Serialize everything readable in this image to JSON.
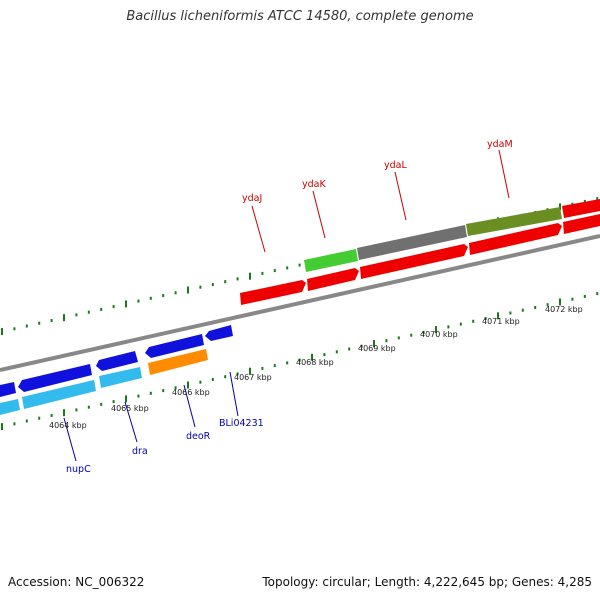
{
  "title": "Bacillus licheniformis ATCC 14580, complete genome",
  "footer": {
    "accession": "Accession: NC_006322",
    "summary": "Topology: circular; Length: 4,222,645 bp; Genes: 4,285"
  },
  "colors": {
    "top_gene_label": "#cc0000",
    "bottom_gene_label": "#0000aa",
    "tick": "#1a7a1a",
    "backbone": "#888888"
  },
  "kbp_labels": [
    "4064 kbp",
    "4065 kbp",
    "4066 kbp",
    "4067 kbp",
    "4068 kbp",
    "4069 kbp",
    "4070 kbp",
    "4071 kbp",
    "4072 kbp"
  ],
  "top_gene_labels": [
    "ydaJ",
    "ydaK",
    "ydaL",
    "ydaM"
  ],
  "bottom_gene_labels": [
    "nupC",
    "dra",
    "deoR",
    "BLi04231"
  ]
}
